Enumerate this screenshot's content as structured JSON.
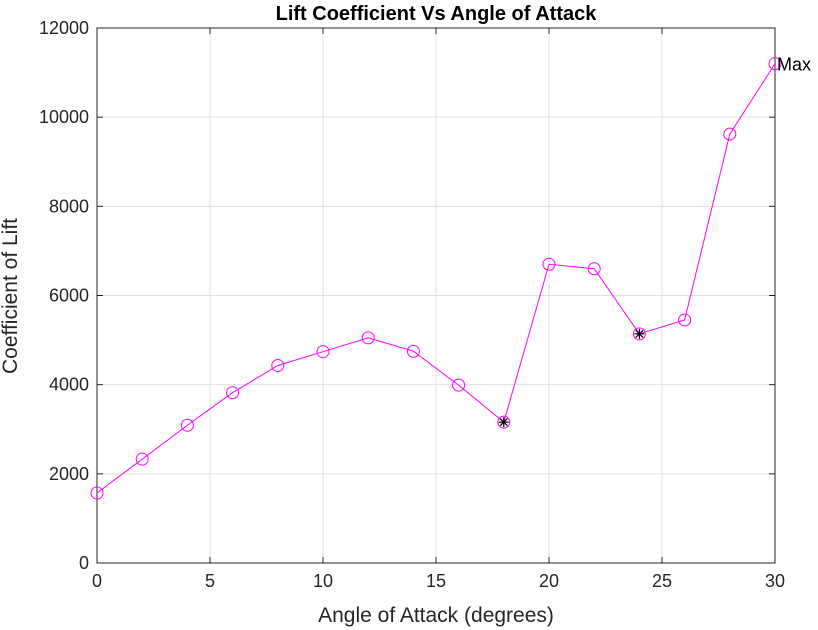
{
  "chart_data": {
    "type": "line",
    "title": "Lift Coefficient Vs Angle of Attack",
    "xlabel": "Angle of Attack (degrees)",
    "ylabel": "Coefficient of Lift",
    "xlim": [
      0,
      30
    ],
    "ylim": [
      0,
      12000
    ],
    "xticks": [
      0,
      5,
      10,
      15,
      20,
      25,
      30
    ],
    "yticks": [
      0,
      2000,
      4000,
      6000,
      8000,
      10000,
      12000
    ],
    "grid": true,
    "series": [
      {
        "x": [
          0,
          2,
          4,
          6,
          8,
          10,
          12,
          14,
          16,
          18,
          20,
          22,
          24,
          26,
          28,
          30
        ],
        "y": [
          1570,
          2330,
          3090,
          3820,
          4430,
          4740,
          5050,
          4750,
          3990,
          3160,
          6700,
          6600,
          5140,
          5450,
          9620,
          11200
        ],
        "color": "#ff00ff",
        "marker": "circle"
      }
    ],
    "star_markers": {
      "x": [
        18,
        24
      ],
      "y": [
        3160,
        5140
      ],
      "color": "#000000"
    },
    "annotations": [
      {
        "text": "Max",
        "x": 30,
        "y": 11200
      }
    ]
  }
}
